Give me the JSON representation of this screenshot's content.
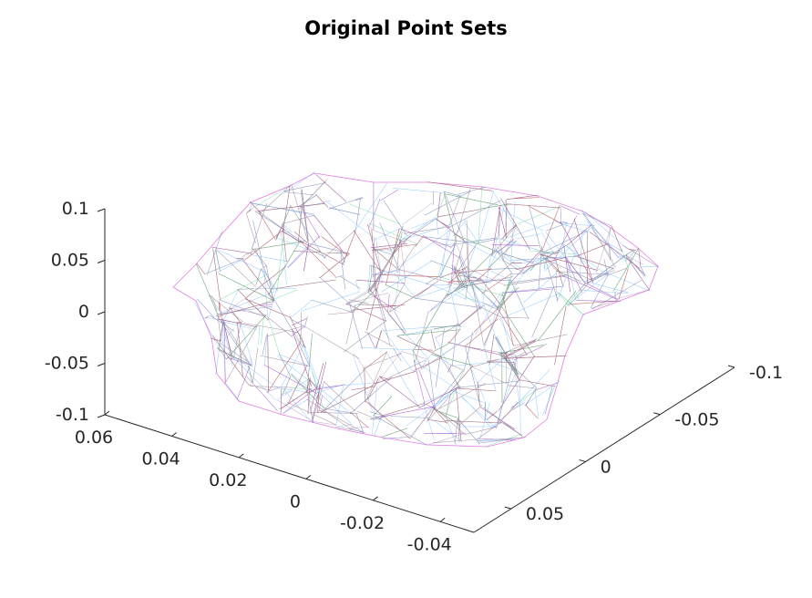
{
  "chart_data": {
    "type": "mesh3d",
    "title": "Original Point Sets",
    "xlabel": "",
    "ylabel": "",
    "zlabel": "",
    "axes": {
      "x": {
        "ticks": [
          0.06,
          0.04,
          0.02,
          0,
          -0.02,
          -0.04
        ],
        "labels": [
          "0.06",
          "0.04",
          "0.02",
          "0",
          "-0.02",
          "-0.04"
        ]
      },
      "y": {
        "ticks": [
          -0.1,
          -0.05,
          0,
          0.05
        ],
        "labels": [
          "-0.1",
          "-0.05",
          "0",
          "0.05"
        ]
      },
      "z": {
        "ticks": [
          0.1,
          0.05,
          0,
          -0.05,
          -0.1
        ],
        "labels": [
          "0.1",
          "0.05",
          "0",
          "-0.05",
          "-0.1"
        ]
      }
    },
    "grid": false,
    "series_colors": [
      "#4da6ff",
      "#2ecc71",
      "#c9c93a",
      "#d946d9",
      "#e07a2e",
      "#8a63d2",
      "#3fb8a8",
      "#b03fb0"
    ]
  }
}
